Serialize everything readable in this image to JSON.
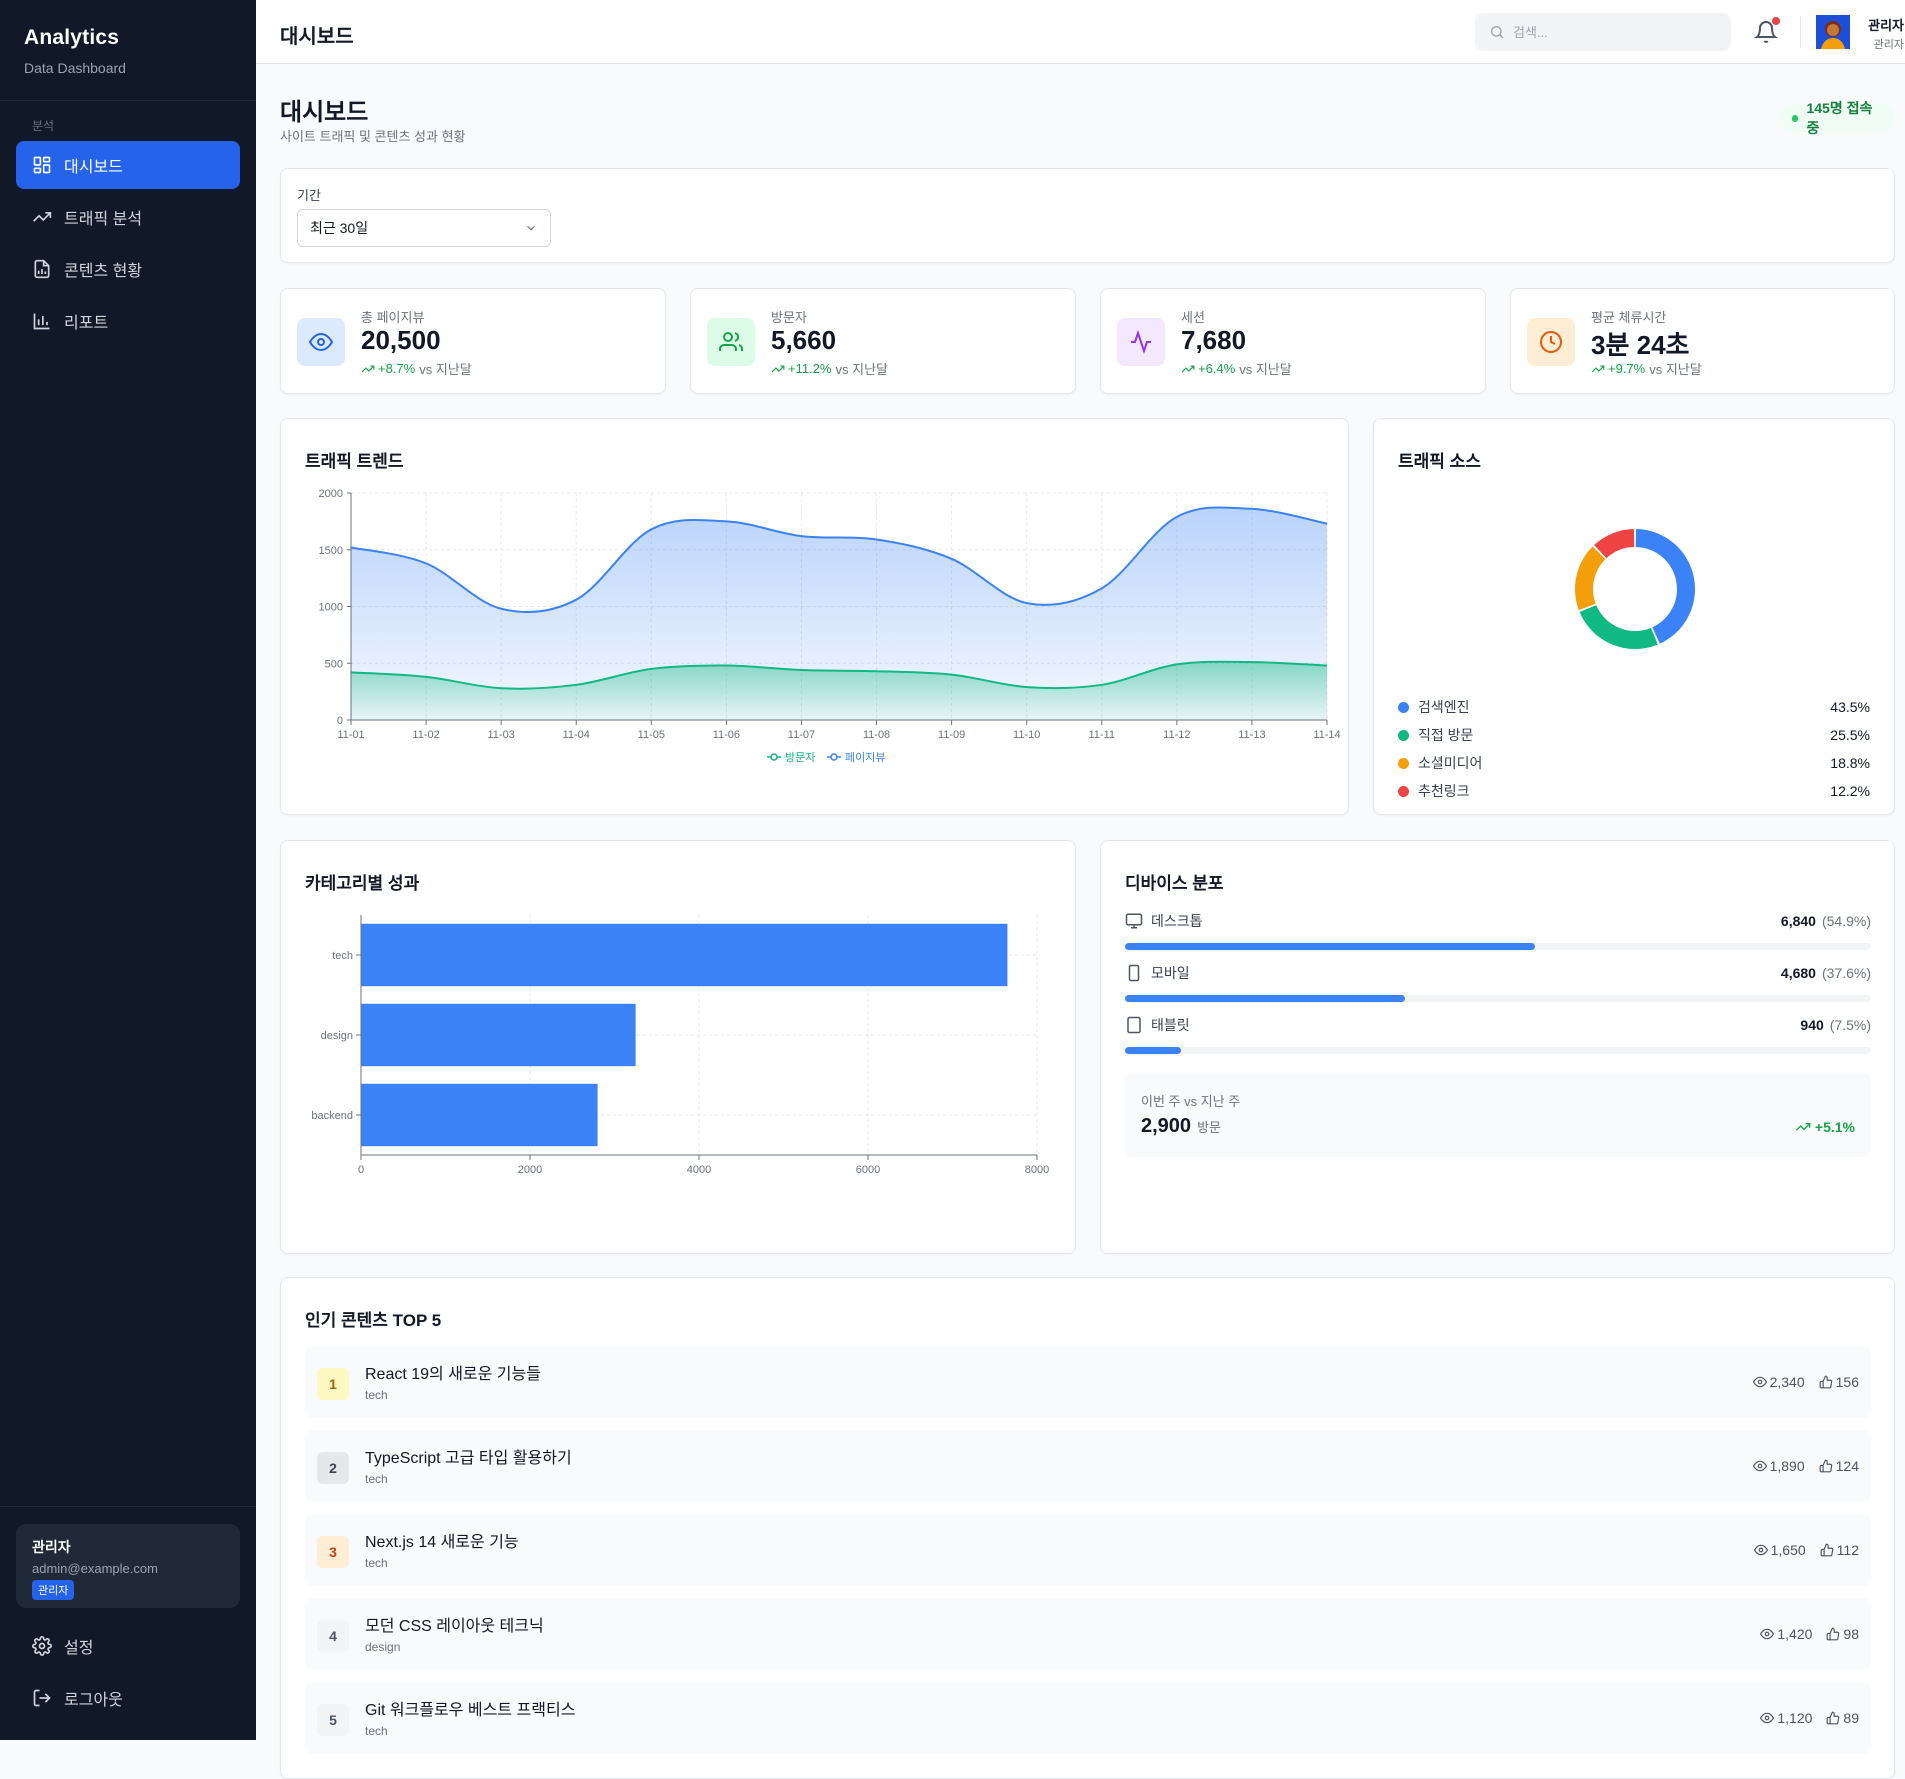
{
  "sidebar": {
    "brand_title": "Analytics",
    "brand_subtitle": "Data Dashboard",
    "section_label": "분석",
    "items": [
      {
        "label": "대시보드",
        "icon": "dashboard-grid-icon",
        "active": true
      },
      {
        "label": "트래픽 분석",
        "icon": "trending-up-icon"
      },
      {
        "label": "콘텐츠 현황",
        "icon": "document-icon"
      },
      {
        "label": "리포트",
        "icon": "bar-chart-icon"
      }
    ],
    "user": {
      "name": "관리자",
      "email": "admin@example.com",
      "role_badge": "관리자"
    },
    "bottom_items": [
      {
        "label": "설정",
        "icon": "gear-icon"
      },
      {
        "label": "로그아웃",
        "icon": "logout-icon"
      }
    ]
  },
  "topbar": {
    "title": "대시보드",
    "search_placeholder": "검색...",
    "user_name": "관리자",
    "user_role": "관리자",
    "notification_dot": true
  },
  "page": {
    "title": "대시보드",
    "subtitle": "사이트 트래픽 및 콘텐츠 성과 현황",
    "live_text": "145명 접속 중"
  },
  "filter": {
    "label": "기간",
    "selected": "최근 30일"
  },
  "stats": [
    {
      "label": "총 페이지뷰",
      "value": "20,500",
      "change": "+8.7%",
      "suffix": "vs 지난달",
      "icon": "eye-icon",
      "color": "#2563eb",
      "bg": "#dbeafe"
    },
    {
      "label": "방문자",
      "value": "5,660",
      "change": "+11.2%",
      "suffix": "vs 지난달",
      "icon": "users-icon",
      "color": "#16a34a",
      "bg": "#dcfce7"
    },
    {
      "label": "세션",
      "value": "7,680",
      "change": "+6.4%",
      "suffix": "vs 지난달",
      "icon": "activity-icon",
      "color": "#9333ea",
      "bg": "#f3e8ff"
    },
    {
      "label": "평균 체류시간",
      "value": "3분 24초",
      "change": "+9.7%",
      "suffix": "vs 지난달",
      "icon": "clock-icon",
      "color": "#ea580c",
      "bg": "#ffedd5"
    }
  ],
  "traffic_trend": {
    "title": "트래픽 트렌드"
  },
  "traffic_source": {
    "title": "트래픽 소스",
    "items": [
      {
        "name": "검색엔진",
        "value": "43.5%",
        "color": "#3b82f6"
      },
      {
        "name": "직접 방문",
        "value": "25.5%",
        "color": "#10b981"
      },
      {
        "name": "소셜미디어",
        "value": "18.8%",
        "color": "#f59e0b"
      },
      {
        "name": "추천링크",
        "value": "12.2%",
        "color": "#ef4444"
      }
    ]
  },
  "category": {
    "title": "카테고리별 성과"
  },
  "devices": {
    "title": "디바이스 분포",
    "items": [
      {
        "name": "데스크톱",
        "count": "6,840",
        "percent": "(54.9%)",
        "share": 0.549,
        "icon": "monitor-icon"
      },
      {
        "name": "모바일",
        "count": "4,680",
        "percent": "(37.6%)",
        "share": 0.376,
        "icon": "smartphone-icon"
      },
      {
        "name": "태블릿",
        "count": "940",
        "percent": "(7.5%)",
        "share": 0.075,
        "icon": "tablet-icon"
      }
    ],
    "week_label": "이번 주 vs 지난 주",
    "week_value": "2,900",
    "week_unit": "방문",
    "week_change": "+5.1%"
  },
  "top_content": {
    "title": "인기 콘텐츠 TOP 5",
    "items": [
      {
        "rank": "1",
        "title": "React 19의 새로운 기능들",
        "category": "tech",
        "views": "2,340",
        "likes": "156",
        "rank_bg": "#fef9c3",
        "rank_color": "#a16207"
      },
      {
        "rank": "2",
        "title": "TypeScript 고급 타입 활용하기",
        "category": "tech",
        "views": "1,890",
        "likes": "124",
        "rank_bg": "#e5e7eb",
        "rank_color": "#374151"
      },
      {
        "rank": "3",
        "title": "Next.js 14 새로운 기능",
        "category": "tech",
        "views": "1,650",
        "likes": "112",
        "rank_bg": "#ffedd5",
        "rank_color": "#c2410c"
      },
      {
        "rank": "4",
        "title": "모던 CSS 레이아웃 테크닉",
        "category": "design",
        "views": "1,420",
        "likes": "98",
        "rank_bg": "#f3f4f6",
        "rank_color": "#4b5563"
      },
      {
        "rank": "5",
        "title": "Git 워크플로우 베스트 프랙티스",
        "category": "tech",
        "views": "1,120",
        "likes": "89",
        "rank_bg": "#f3f4f6",
        "rank_color": "#4b5563"
      }
    ]
  },
  "chart_data": [
    {
      "type": "area",
      "x": [
        "11-01",
        "11-02",
        "11-03",
        "11-04",
        "11-05",
        "11-06",
        "11-07",
        "11-08",
        "11-09",
        "11-10",
        "11-11",
        "11-12",
        "11-13",
        "11-14"
      ],
      "series": [
        {
          "name": "방문자",
          "values": [
            420,
            380,
            280,
            310,
            450,
            480,
            440,
            430,
            400,
            290,
            310,
            490,
            510,
            480
          ],
          "color": "#10b981"
        },
        {
          "name": "페이지뷰",
          "values": [
            1520,
            1380,
            980,
            1060,
            1680,
            1750,
            1620,
            1590,
            1420,
            1030,
            1160,
            1790,
            1860,
            1730
          ],
          "color": "#3b82f6"
        }
      ],
      "ylim": [
        0,
        2000
      ],
      "yticks": [
        0,
        500,
        1000,
        1500,
        2000
      ],
      "grid": true,
      "legend": "bottom"
    },
    {
      "type": "pie",
      "labels": [
        "검색엔진",
        "직접 방문",
        "소셜미디어",
        "추천링크"
      ],
      "values": [
        43.5,
        25.5,
        18.8,
        12.2
      ],
      "colors": [
        "#3b82f6",
        "#10b981",
        "#f59e0b",
        "#ef4444"
      ]
    },
    {
      "type": "bar",
      "orientation": "horizontal",
      "categories": [
        "tech",
        "design",
        "backend"
      ],
      "values": [
        7650,
        3250,
        2800
      ],
      "xlim": [
        0,
        8000
      ],
      "xticks": [
        0,
        2000,
        4000,
        6000,
        8000
      ],
      "color": "#3b82f6",
      "grid": true
    }
  ]
}
